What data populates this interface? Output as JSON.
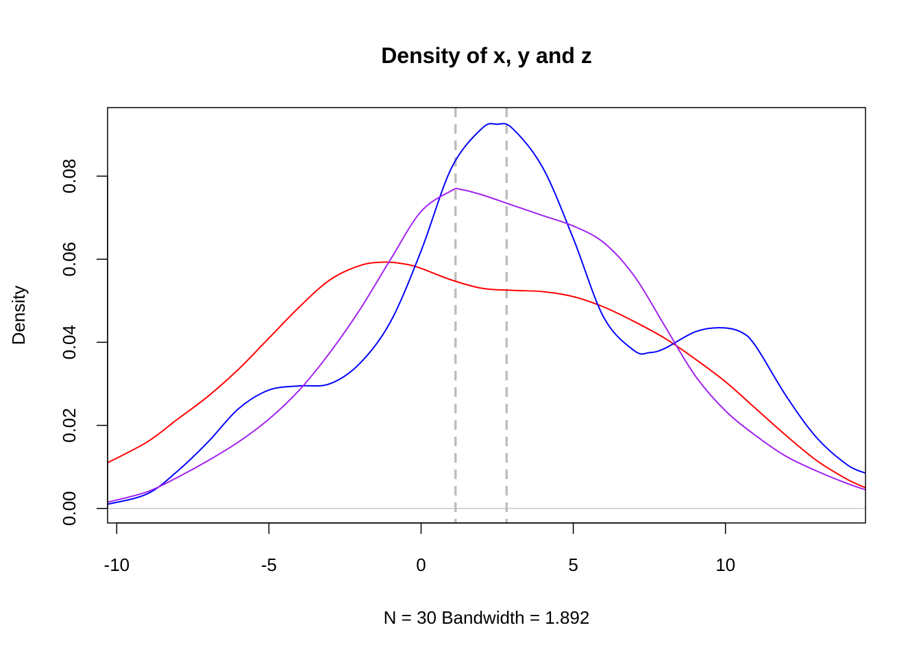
{
  "chart_data": {
    "type": "line",
    "title": "Density of x, y  and z",
    "xlabel": "N = 30   Bandwidth = 1.892",
    "ylabel": "Density",
    "xlim": [
      -10.3,
      14.6
    ],
    "ylim": [
      -0.0035,
      0.0965
    ],
    "x_ticks": [
      -10,
      -5,
      0,
      5,
      10
    ],
    "x_tick_labels": [
      "-10",
      "-5",
      "0",
      "5",
      "10"
    ],
    "y_ticks": [
      0.0,
      0.02,
      0.04,
      0.06,
      0.08
    ],
    "y_tick_labels": [
      "0.00",
      "0.02",
      "0.04",
      "0.06",
      "0.08"
    ],
    "grid": false,
    "baseline": {
      "y": 0,
      "color": "#c8c8c8"
    },
    "vlines": [
      {
        "x": 1.13,
        "color": "#bebebe",
        "style": "dashed"
      },
      {
        "x": 2.81,
        "color": "#bebebe",
        "style": "dashed"
      }
    ],
    "series": [
      {
        "color": "#ff0000",
        "x": [
          -10.3,
          -9,
          -8,
          -7,
          -6,
          -5,
          -4,
          -3,
          -2,
          -1.2,
          -0.5,
          0,
          1,
          2,
          3,
          4,
          5,
          6,
          7,
          8,
          9,
          10,
          11,
          12,
          13,
          14,
          14.6
        ],
        "y": [
          0.011,
          0.016,
          0.0215,
          0.027,
          0.0335,
          0.041,
          0.0485,
          0.055,
          0.0585,
          0.0593,
          0.0588,
          0.0578,
          0.055,
          0.053,
          0.0525,
          0.0522,
          0.051,
          0.0485,
          0.045,
          0.041,
          0.036,
          0.0305,
          0.024,
          0.0175,
          0.0115,
          0.007,
          0.005
        ]
      },
      {
        "color": "#0000ff",
        "x": [
          -10.3,
          -9,
          -8,
          -7,
          -6,
          -5,
          -4,
          -3,
          -2,
          -1,
          0,
          1,
          2,
          2.5,
          3,
          4,
          5,
          6,
          7,
          7.5,
          8,
          9,
          9.8,
          10.5,
          11,
          12,
          13,
          14,
          14.6
        ],
        "y": [
          0.001,
          0.0035,
          0.009,
          0.016,
          0.024,
          0.0285,
          0.0295,
          0.03,
          0.035,
          0.045,
          0.062,
          0.082,
          0.0915,
          0.0925,
          0.0915,
          0.082,
          0.065,
          0.046,
          0.038,
          0.0375,
          0.0385,
          0.0425,
          0.0435,
          0.0425,
          0.039,
          0.027,
          0.017,
          0.0105,
          0.0085
        ]
      },
      {
        "color": "#a020f0",
        "x": [
          -10.3,
          -9,
          -8,
          -7,
          -6,
          -5,
          -4,
          -3,
          -2,
          -1,
          0,
          1,
          1.3,
          2,
          3,
          4,
          5,
          6,
          7,
          8,
          9,
          10,
          11,
          12,
          13,
          14,
          14.6
        ],
        "y": [
          0.0015,
          0.004,
          0.0075,
          0.0115,
          0.016,
          0.0215,
          0.0285,
          0.0375,
          0.048,
          0.06,
          0.0715,
          0.0765,
          0.0768,
          0.0755,
          0.073,
          0.0705,
          0.068,
          0.064,
          0.056,
          0.044,
          0.032,
          0.0235,
          0.0175,
          0.0125,
          0.009,
          0.006,
          0.0045
        ]
      }
    ]
  }
}
